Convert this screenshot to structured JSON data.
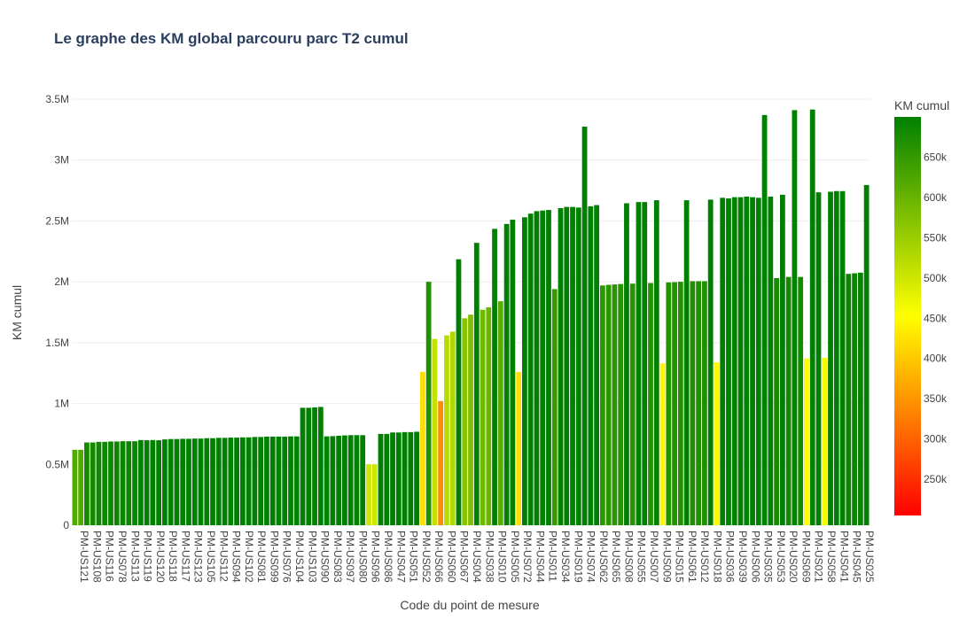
{
  "chart_data": {
    "type": "bar",
    "title": "Le graphe des KM global parcouru parc T2 cumul",
    "xlabel": "Code du point de mesure",
    "ylabel": "KM cumul",
    "ylim": [
      0,
      3500000
    ],
    "yticks": [
      0,
      500000,
      1000000,
      1500000,
      2000000,
      2500000,
      3000000,
      3500000
    ],
    "ytick_labels": [
      "0",
      "0.5M",
      "1M",
      "1.5M",
      "2M",
      "2.5M",
      "3M",
      "3.5M"
    ],
    "colorbar": {
      "title": "KM cumul",
      "range": [
        205000,
        700000
      ],
      "ticks": [
        250000,
        300000,
        350000,
        400000,
        450000,
        500000,
        550000,
        600000,
        650000
      ],
      "tick_labels": [
        "250k",
        "300k",
        "350k",
        "400k",
        "450k",
        "500k",
        "550k",
        "600k",
        "650k"
      ],
      "colors": [
        "#ff0000",
        "#ffff00",
        "#008000"
      ]
    },
    "grid": true,
    "categories_labeled": [
      "PM-US121",
      "PM-US108",
      "PM-US116",
      "PM-US078",
      "PM-US113",
      "PM-US119",
      "PM-US120",
      "PM-US118",
      "PM-US117",
      "PM-US123",
      "PM-US105",
      "PM-US112",
      "PM-US094",
      "PM-US102",
      "PM-US081",
      "PM-US099",
      "PM-US076",
      "PM-US104",
      "PM-US103",
      "PM-US090",
      "PM-US083",
      "PM-US097",
      "PM-US080",
      "PM-US096",
      "PM-US086",
      "PM-US047",
      "PM-US051",
      "PM-US052",
      "PM-US066",
      "PM-US060",
      "PM-US067",
      "PM-US004",
      "PM-US038",
      "PM-US010",
      "PM-US005",
      "PM-US072",
      "PM-US044",
      "PM-US011",
      "PM-US034",
      "PM-US019",
      "PM-US074",
      "PM-US062",
      "PM-US065",
      "PM-US008",
      "PM-US055",
      "PM-US007",
      "PM-US009",
      "PM-US015",
      "PM-US061",
      "PM-US012",
      "PM-US018",
      "PM-US036",
      "PM-US039",
      "PM-US006",
      "PM-US035",
      "PM-US053",
      "PM-US020",
      "PM-US069",
      "PM-US021",
      "PM-US058",
      "PM-US041",
      "PM-US045",
      "PM-US025"
    ],
    "values": [
      620000,
      620000,
      680000,
      680000,
      685000,
      685000,
      688000,
      688000,
      690000,
      690000,
      690000,
      700000,
      698000,
      700000,
      698000,
      705000,
      708000,
      708000,
      710000,
      710000,
      712000,
      712000,
      715000,
      715000,
      718000,
      718000,
      720000,
      720000,
      722000,
      722000,
      725000,
      725000,
      728000,
      728000,
      728000,
      728000,
      730000,
      730000,
      965000,
      965000,
      968000,
      972000,
      730000,
      732000,
      735000,
      738000,
      740000,
      740000,
      740000,
      500000,
      500000,
      750000,
      750000,
      762000,
      762000,
      765000,
      765000,
      768000,
      1260000,
      2000000,
      1530000,
      1020000,
      1560000,
      1590000,
      2185000,
      1700000,
      1730000,
      2320000,
      1770000,
      1790000,
      2435000,
      1840000,
      2475000,
      2510000,
      1260000,
      2530000,
      2560000,
      2580000,
      2585000,
      2590000,
      1940000,
      2605000,
      2615000,
      2615000,
      2610000,
      3275000,
      2620000,
      2630000,
      1970000,
      1975000,
      1978000,
      1982000,
      2645000,
      1985000,
      2655000,
      2655000,
      1990000,
      2670000,
      1330000,
      1995000,
      1997000,
      2000000,
      2670000,
      2005000,
      2005000,
      2005000,
      2675000,
      1338000,
      2690000,
      2685000,
      2695000,
      2695000,
      2700000,
      2695000,
      2690000,
      3370000,
      2700000,
      2030000,
      2715000,
      2040000,
      3410000,
      2040000,
      1370000,
      3415000,
      2735000,
      1375000,
      2740000,
      2745000,
      2745000,
      2065000,
      2070000,
      2075000,
      2795000
    ]
  }
}
